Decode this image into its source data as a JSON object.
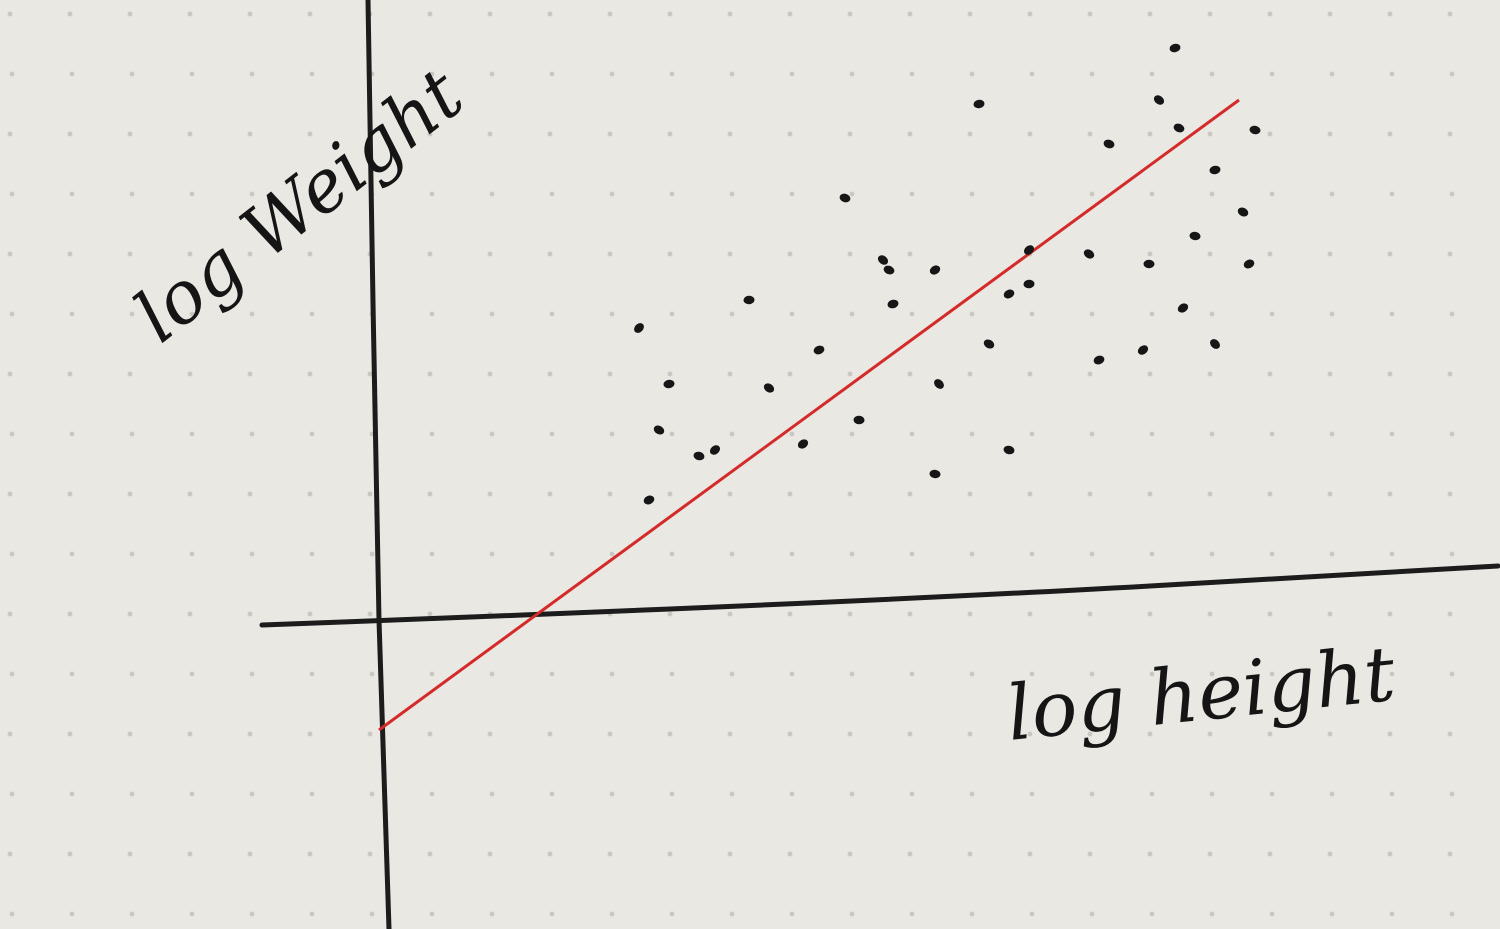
{
  "chart_data": {
    "type": "scatter",
    "xlabel": "log height",
    "ylabel": "log Weight",
    "grid": true,
    "colors": {
      "points": "#161616",
      "fit_line": "#d42a2a",
      "axes": "#1c1c1c",
      "paper": "#e9e8e3"
    },
    "xlim": [
      -0.6,
      5.6
    ],
    "ylim": [
      -0.8,
      3.1
    ],
    "points": [
      {
        "x": 1.3,
        "y": 1.46
      },
      {
        "x": 1.45,
        "y": 1.18
      },
      {
        "x": 1.4,
        "y": 0.95
      },
      {
        "x": 1.35,
        "y": 0.6
      },
      {
        "x": 1.6,
        "y": 0.82
      },
      {
        "x": 1.68,
        "y": 0.85
      },
      {
        "x": 1.85,
        "y": 1.6
      },
      {
        "x": 1.95,
        "y": 1.16
      },
      {
        "x": 2.2,
        "y": 1.35
      },
      {
        "x": 2.33,
        "y": 2.11
      },
      {
        "x": 2.12,
        "y": 0.88
      },
      {
        "x": 2.4,
        "y": 1.0
      },
      {
        "x": 2.52,
        "y": 1.8
      },
      {
        "x": 2.57,
        "y": 1.58
      },
      {
        "x": 2.55,
        "y": 1.75
      },
      {
        "x": 2.78,
        "y": 1.75
      },
      {
        "x": 2.78,
        "y": 0.73
      },
      {
        "x": 2.8,
        "y": 1.18
      },
      {
        "x": 3.0,
        "y": 2.58
      },
      {
        "x": 3.05,
        "y": 1.38
      },
      {
        "x": 3.15,
        "y": 1.63
      },
      {
        "x": 3.15,
        "y": 0.85
      },
      {
        "x": 3.25,
        "y": 1.85
      },
      {
        "x": 3.25,
        "y": 1.68
      },
      {
        "x": 3.55,
        "y": 1.83
      },
      {
        "x": 3.6,
        "y": 1.3
      },
      {
        "x": 3.65,
        "y": 2.38
      },
      {
        "x": 3.82,
        "y": 1.35
      },
      {
        "x": 3.85,
        "y": 1.78
      },
      {
        "x": 3.9,
        "y": 2.6
      },
      {
        "x": 3.98,
        "y": 2.86
      },
      {
        "x": 4.0,
        "y": 2.46
      },
      {
        "x": 4.02,
        "y": 1.56
      },
      {
        "x": 4.08,
        "y": 1.92
      },
      {
        "x": 4.18,
        "y": 1.38
      },
      {
        "x": 4.18,
        "y": 2.25
      },
      {
        "x": 4.32,
        "y": 2.04
      },
      {
        "x": 4.35,
        "y": 1.78
      },
      {
        "x": 4.38,
        "y": 2.45
      }
    ],
    "fit_line": {
      "x": [
        0.0,
        4.3
      ],
      "y": [
        -0.55,
        2.6
      ]
    }
  }
}
